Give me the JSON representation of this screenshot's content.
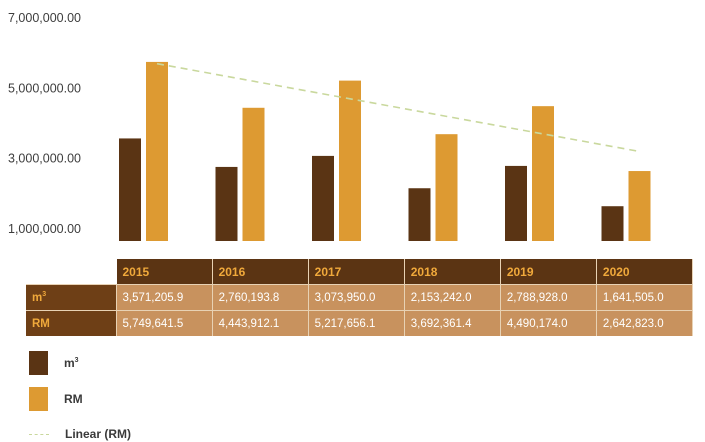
{
  "chart_data": {
    "type": "bar",
    "categories": [
      "2015",
      "2016",
      "2017",
      "2018",
      "2019",
      "2020"
    ],
    "series": [
      {
        "name": "m³",
        "color": "#5a3414",
        "values": [
          3571205.9,
          2760193.8,
          3073950.0,
          2153242.0,
          2788928.0,
          1641505.0
        ],
        "labels": [
          "3,571,205.9",
          "2,760,193.8",
          "3,073,950.0",
          "2,153,242.0",
          "2,788,928.0",
          "1,641,505.0"
        ]
      },
      {
        "name": "RM",
        "color": "#dd9a32",
        "values": [
          5749641.5,
          4443912.1,
          5217656.1,
          3692361.4,
          4490174.0,
          2642823.0
        ],
        "labels": [
          "5,749,641.5",
          "4,443,912.1",
          "5,217,656.1",
          "3,692,361.4",
          "4,490,174.0",
          "2,642,823.0"
        ]
      }
    ],
    "trendline": {
      "name": "Linear (RM)",
      "color": "#c9d89d",
      "start": 5700000,
      "end": 3200000
    },
    "yticks": [
      1000000,
      3000000,
      5000000,
      7000000
    ],
    "ytick_labels": [
      "1,000,000.00",
      "3,000,000.00",
      "5,000,000.00",
      "7,000,000.00"
    ],
    "ylim": [
      -1000000,
      7000000
    ],
    "grid": false,
    "legend_position": "bottom-left"
  },
  "table": {
    "row_labels": [
      "m",
      "RM"
    ],
    "row_label_sup": [
      "3",
      ""
    ]
  },
  "legend": {
    "m3": {
      "label": "m",
      "sup": "3"
    },
    "rm": {
      "label": "RM"
    },
    "trend": {
      "label": "Linear (RM)"
    }
  }
}
